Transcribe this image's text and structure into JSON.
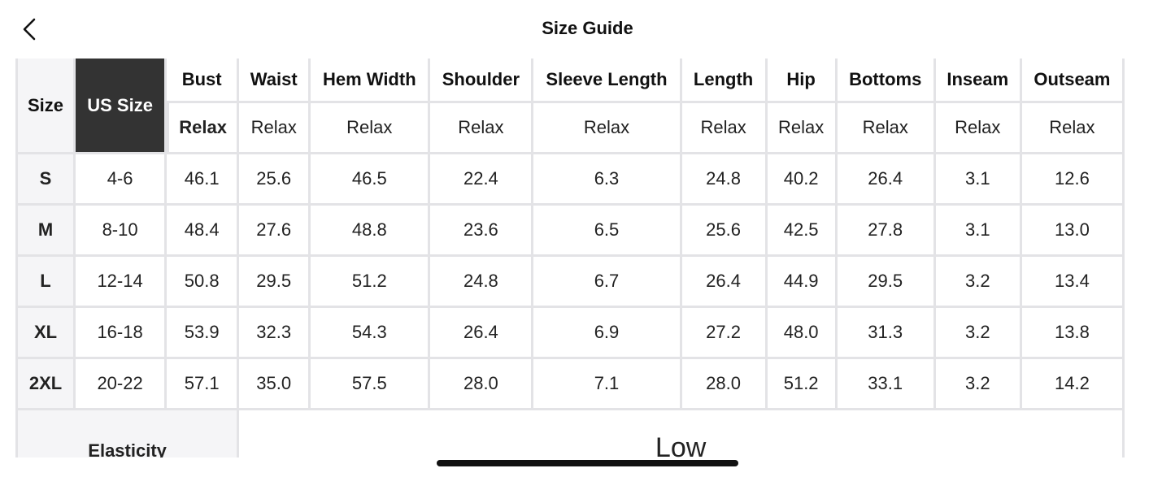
{
  "header": {
    "title": "Size Guide",
    "back_icon": "chevron-left-icon"
  },
  "table": {
    "columns": [
      "Size",
      "US Size",
      "Bust",
      "Waist",
      "Hem Width",
      "Shoulder",
      "Sleeve Length",
      "Length",
      "Hip",
      "Bottoms",
      "Inseam",
      "Outseam"
    ],
    "fit_labels": [
      "Relax",
      "Relax",
      "Relax",
      "Relax",
      "Relax",
      "Relax",
      "Relax",
      "Relax",
      "Relax",
      "Relax"
    ],
    "rows": [
      {
        "size": "S",
        "us": "4-6",
        "values": [
          "46.1",
          "25.6",
          "46.5",
          "22.4",
          "6.3",
          "24.8",
          "40.2",
          "26.4",
          "3.1",
          "12.6"
        ]
      },
      {
        "size": "M",
        "us": "8-10",
        "values": [
          "48.4",
          "27.6",
          "48.8",
          "23.6",
          "6.5",
          "25.6",
          "42.5",
          "27.8",
          "3.1",
          "13.0"
        ]
      },
      {
        "size": "L",
        "us": "12-14",
        "values": [
          "50.8",
          "29.5",
          "51.2",
          "24.8",
          "6.7",
          "26.4",
          "44.9",
          "29.5",
          "3.2",
          "13.4"
        ]
      },
      {
        "size": "XL",
        "us": "16-18",
        "values": [
          "53.9",
          "32.3",
          "54.3",
          "26.4",
          "6.9",
          "27.2",
          "48.0",
          "31.3",
          "3.2",
          "13.8"
        ]
      },
      {
        "size": "2XL",
        "us": "20-22",
        "values": [
          "57.1",
          "35.0",
          "57.5",
          "28.0",
          "7.1",
          "28.0",
          "51.2",
          "33.1",
          "3.2",
          "14.2"
        ]
      }
    ],
    "elasticity": {
      "label": "Elasticity",
      "value": "Low"
    }
  },
  "colors": {
    "header_cell_bg": "#f5f5f7",
    "highlight_bg": "#333333",
    "border": "#e3e3e6"
  }
}
